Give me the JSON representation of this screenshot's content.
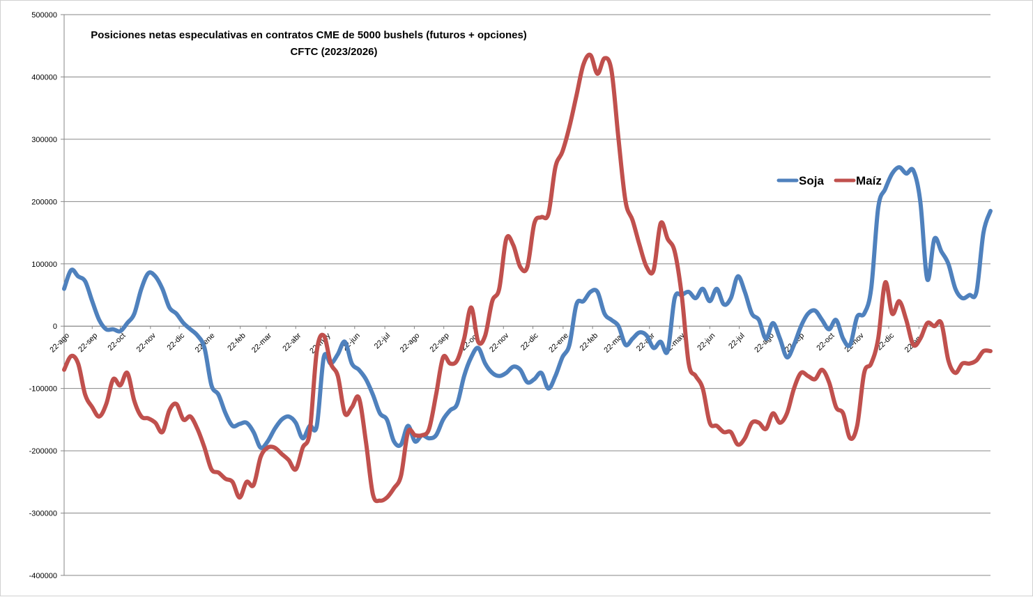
{
  "chart_data": {
    "type": "line",
    "title": "Posiciones netas especulativas en contratos CME de 5000 bushels (futuros + opciones)",
    "subtitle": "CFTC (2023/2026)",
    "ylim": [
      -400000,
      500000
    ],
    "yticks": [
      -400000,
      -300000,
      -200000,
      -100000,
      0,
      100000,
      200000,
      300000,
      400000,
      500000
    ],
    "ytick_labels": [
      "-400000",
      "-300000",
      "-200000",
      "-100000",
      "0",
      "100000",
      "200000",
      "300000",
      "400000",
      "500000"
    ],
    "xlim": [
      0,
      130
    ],
    "grid": "horizontal",
    "legend_position": "right",
    "x_ticks": [
      {
        "x": 0,
        "label": "22-ago"
      },
      {
        "x": 4,
        "label": "22-sep"
      },
      {
        "x": 8,
        "label": "22-oct"
      },
      {
        "x": 12.3,
        "label": "22-nov"
      },
      {
        "x": 16.4,
        "label": "22-dic"
      },
      {
        "x": 20.7,
        "label": "22-ene"
      },
      {
        "x": 25.1,
        "label": "22-feb"
      },
      {
        "x": 28.8,
        "label": "22-mar"
      },
      {
        "x": 33,
        "label": "22-abr"
      },
      {
        "x": 37.2,
        "label": "22-may"
      },
      {
        "x": 41.4,
        "label": "22-jun"
      },
      {
        "x": 45.7,
        "label": "22-jul"
      },
      {
        "x": 49.9,
        "label": "22-ago"
      },
      {
        "x": 54.1,
        "label": "22-sep"
      },
      {
        "x": 58.3,
        "label": "22-oct"
      },
      {
        "x": 62.6,
        "label": "22-nov"
      },
      {
        "x": 66.8,
        "label": "22-dic"
      },
      {
        "x": 71.1,
        "label": "22-ene"
      },
      {
        "x": 75.3,
        "label": "22-feb"
      },
      {
        "x": 79,
        "label": "22-mar"
      },
      {
        "x": 83.4,
        "label": "22-abr"
      },
      {
        "x": 87.7,
        "label": "22-may"
      },
      {
        "x": 92,
        "label": "22-jun"
      },
      {
        "x": 96.2,
        "label": "22-jul"
      },
      {
        "x": 100.4,
        "label": "22-ago"
      },
      {
        "x": 104.7,
        "label": "22-sep"
      },
      {
        "x": 109,
        "label": "22-oct"
      },
      {
        "x": 113.2,
        "label": "22-nov"
      },
      {
        "x": 117.5,
        "label": "22-dic"
      },
      {
        "x": 121.8,
        "label": "22-ene"
      }
    ],
    "series": [
      {
        "name": "Soja",
        "color": "#4f81bd",
        "points": [
          [
            0,
            60000
          ],
          [
            1,
            90000
          ],
          [
            2,
            80000
          ],
          [
            3,
            72000
          ],
          [
            4,
            40000
          ],
          [
            5,
            10000
          ],
          [
            6,
            -5000
          ],
          [
            7,
            -5000
          ],
          [
            8,
            -8000
          ],
          [
            9,
            5000
          ],
          [
            10,
            20000
          ],
          [
            11,
            60000
          ],
          [
            12,
            85000
          ],
          [
            13,
            80000
          ],
          [
            14,
            60000
          ],
          [
            15,
            30000
          ],
          [
            16,
            20000
          ],
          [
            17,
            5000
          ],
          [
            18,
            -5000
          ],
          [
            19,
            -15000
          ],
          [
            20,
            -35000
          ],
          [
            21,
            -95000
          ],
          [
            22,
            -110000
          ],
          [
            23,
            -140000
          ],
          [
            24,
            -160000
          ],
          [
            25,
            -157000
          ],
          [
            26,
            -155000
          ],
          [
            27,
            -170000
          ],
          [
            28,
            -195000
          ],
          [
            29,
            -185000
          ],
          [
            30,
            -165000
          ],
          [
            31,
            -150000
          ],
          [
            32,
            -145000
          ],
          [
            33,
            -155000
          ],
          [
            34,
            -180000
          ],
          [
            35,
            -160000
          ],
          [
            36,
            -160000
          ],
          [
            37,
            -50000
          ],
          [
            38,
            -60000
          ],
          [
            39,
            -45000
          ],
          [
            40,
            -25000
          ],
          [
            41,
            -60000
          ],
          [
            42,
            -70000
          ],
          [
            43,
            -85000
          ],
          [
            44,
            -110000
          ],
          [
            45,
            -140000
          ],
          [
            46,
            -150000
          ],
          [
            47,
            -185000
          ],
          [
            48,
            -190000
          ],
          [
            49,
            -160000
          ],
          [
            50,
            -185000
          ],
          [
            51,
            -175000
          ],
          [
            52,
            -180000
          ],
          [
            53,
            -175000
          ],
          [
            54,
            -150000
          ],
          [
            55,
            -135000
          ],
          [
            56,
            -125000
          ],
          [
            57,
            -80000
          ],
          [
            58,
            -50000
          ],
          [
            59,
            -35000
          ],
          [
            60,
            -60000
          ],
          [
            61,
            -75000
          ],
          [
            62,
            -80000
          ],
          [
            63,
            -75000
          ],
          [
            64,
            -65000
          ],
          [
            65,
            -70000
          ],
          [
            66,
            -90000
          ],
          [
            67,
            -85000
          ],
          [
            68,
            -75000
          ],
          [
            69,
            -100000
          ],
          [
            70,
            -80000
          ],
          [
            71,
            -50000
          ],
          [
            72,
            -30000
          ],
          [
            73,
            35000
          ],
          [
            74,
            40000
          ],
          [
            75,
            55000
          ],
          [
            76,
            55000
          ],
          [
            77,
            20000
          ],
          [
            78,
            10000
          ],
          [
            79,
            0
          ],
          [
            80,
            -30000
          ],
          [
            81,
            -20000
          ],
          [
            82,
            -10000
          ],
          [
            83,
            -15000
          ],
          [
            84,
            -35000
          ],
          [
            85,
            -25000
          ],
          [
            86,
            -40000
          ],
          [
            87,
            45000
          ],
          [
            88,
            50000
          ],
          [
            89,
            55000
          ],
          [
            90,
            45000
          ],
          [
            91,
            60000
          ],
          [
            92,
            40000
          ],
          [
            93,
            60000
          ],
          [
            94,
            35000
          ],
          [
            95,
            45000
          ],
          [
            96,
            80000
          ],
          [
            97,
            55000
          ],
          [
            98,
            20000
          ],
          [
            99,
            10000
          ],
          [
            100,
            -20000
          ],
          [
            101,
            5000
          ],
          [
            102,
            -20000
          ],
          [
            103,
            -50000
          ],
          [
            104,
            -30000
          ],
          [
            105,
            0
          ],
          [
            106,
            20000
          ],
          [
            107,
            25000
          ],
          [
            108,
            10000
          ],
          [
            109,
            -5000
          ],
          [
            110,
            10000
          ],
          [
            111,
            -20000
          ],
          [
            112,
            -30000
          ],
          [
            113,
            15000
          ],
          [
            114,
            20000
          ],
          [
            115,
            60000
          ],
          [
            116,
            190000
          ],
          [
            117,
            220000
          ],
          [
            118,
            245000
          ],
          [
            119,
            255000
          ],
          [
            120,
            245000
          ],
          [
            121,
            250000
          ],
          [
            122,
            200000
          ],
          [
            123,
            75000
          ],
          [
            124,
            140000
          ],
          [
            125,
            120000
          ],
          [
            126,
            100000
          ],
          [
            127,
            60000
          ],
          [
            128,
            45000
          ],
          [
            129,
            50000
          ],
          [
            130,
            55000
          ],
          [
            131,
            150000
          ],
          [
            132,
            185000
          ]
        ]
      },
      {
        "name": "Maíz",
        "color": "#c0504d",
        "points": [
          [
            0,
            -70000
          ],
          [
            1,
            -48000
          ],
          [
            2,
            -60000
          ],
          [
            3,
            -110000
          ],
          [
            4,
            -130000
          ],
          [
            5,
            -145000
          ],
          [
            6,
            -125000
          ],
          [
            7,
            -85000
          ],
          [
            8,
            -95000
          ],
          [
            9,
            -75000
          ],
          [
            10,
            -120000
          ],
          [
            11,
            -145000
          ],
          [
            12,
            -148000
          ],
          [
            13,
            -155000
          ],
          [
            14,
            -170000
          ],
          [
            15,
            -135000
          ],
          [
            16,
            -125000
          ],
          [
            17,
            -150000
          ],
          [
            18,
            -145000
          ],
          [
            19,
            -165000
          ],
          [
            20,
            -195000
          ],
          [
            21,
            -230000
          ],
          [
            22,
            -235000
          ],
          [
            23,
            -245000
          ],
          [
            24,
            -250000
          ],
          [
            25,
            -275000
          ],
          [
            26,
            -250000
          ],
          [
            27,
            -255000
          ],
          [
            28,
            -210000
          ],
          [
            29,
            -195000
          ],
          [
            30,
            -195000
          ],
          [
            31,
            -205000
          ],
          [
            32,
            -215000
          ],
          [
            33,
            -230000
          ],
          [
            34,
            -195000
          ],
          [
            35,
            -170000
          ],
          [
            36,
            -40000
          ],
          [
            37,
            -15000
          ],
          [
            38,
            -60000
          ],
          [
            39,
            -80000
          ],
          [
            40,
            -140000
          ],
          [
            41,
            -130000
          ],
          [
            42,
            -115000
          ],
          [
            43,
            -185000
          ],
          [
            44,
            -270000
          ],
          [
            45,
            -280000
          ],
          [
            46,
            -275000
          ],
          [
            47,
            -260000
          ],
          [
            48,
            -240000
          ],
          [
            49,
            -170000
          ],
          [
            50,
            -175000
          ],
          [
            51,
            -175000
          ],
          [
            52,
            -165000
          ],
          [
            53,
            -110000
          ],
          [
            54,
            -50000
          ],
          [
            55,
            -60000
          ],
          [
            56,
            -55000
          ],
          [
            57,
            -20000
          ],
          [
            58,
            30000
          ],
          [
            59,
            -25000
          ],
          [
            60,
            -15000
          ],
          [
            61,
            40000
          ],
          [
            62,
            60000
          ],
          [
            63,
            140000
          ],
          [
            64,
            130000
          ],
          [
            65,
            95000
          ],
          [
            66,
            95000
          ],
          [
            67,
            165000
          ],
          [
            68,
            175000
          ],
          [
            69,
            180000
          ],
          [
            70,
            255000
          ],
          [
            71,
            280000
          ],
          [
            72,
            320000
          ],
          [
            73,
            370000
          ],
          [
            74,
            420000
          ],
          [
            75,
            435000
          ],
          [
            76,
            405000
          ],
          [
            77,
            430000
          ],
          [
            78,
            410000
          ],
          [
            79,
            300000
          ],
          [
            80,
            200000
          ],
          [
            81,
            170000
          ],
          [
            82,
            130000
          ],
          [
            83,
            95000
          ],
          [
            84,
            90000
          ],
          [
            85,
            165000
          ],
          [
            86,
            140000
          ],
          [
            87,
            120000
          ],
          [
            88,
            50000
          ],
          [
            89,
            -60000
          ],
          [
            90,
            -80000
          ],
          [
            91,
            -100000
          ],
          [
            92,
            -155000
          ],
          [
            93,
            -160000
          ],
          [
            94,
            -170000
          ],
          [
            95,
            -170000
          ],
          [
            96,
            -190000
          ],
          [
            97,
            -180000
          ],
          [
            98,
            -155000
          ],
          [
            99,
            -155000
          ],
          [
            100,
            -165000
          ],
          [
            101,
            -140000
          ],
          [
            102,
            -155000
          ],
          [
            103,
            -140000
          ],
          [
            104,
            -100000
          ],
          [
            105,
            -75000
          ],
          [
            106,
            -80000
          ],
          [
            107,
            -85000
          ],
          [
            108,
            -70000
          ],
          [
            109,
            -90000
          ],
          [
            110,
            -130000
          ],
          [
            111,
            -140000
          ],
          [
            112,
            -180000
          ],
          [
            113,
            -160000
          ],
          [
            114,
            -75000
          ],
          [
            115,
            -60000
          ],
          [
            116,
            -20000
          ],
          [
            117,
            70000
          ],
          [
            118,
            20000
          ],
          [
            119,
            40000
          ],
          [
            120,
            10000
          ],
          [
            121,
            -30000
          ],
          [
            122,
            -20000
          ],
          [
            123,
            5000
          ],
          [
            124,
            0
          ],
          [
            125,
            5000
          ],
          [
            126,
            -55000
          ],
          [
            127,
            -75000
          ],
          [
            128,
            -60000
          ],
          [
            129,
            -60000
          ],
          [
            130,
            -55000
          ],
          [
            131,
            -40000
          ],
          [
            132,
            -40000
          ]
        ]
      }
    ]
  }
}
